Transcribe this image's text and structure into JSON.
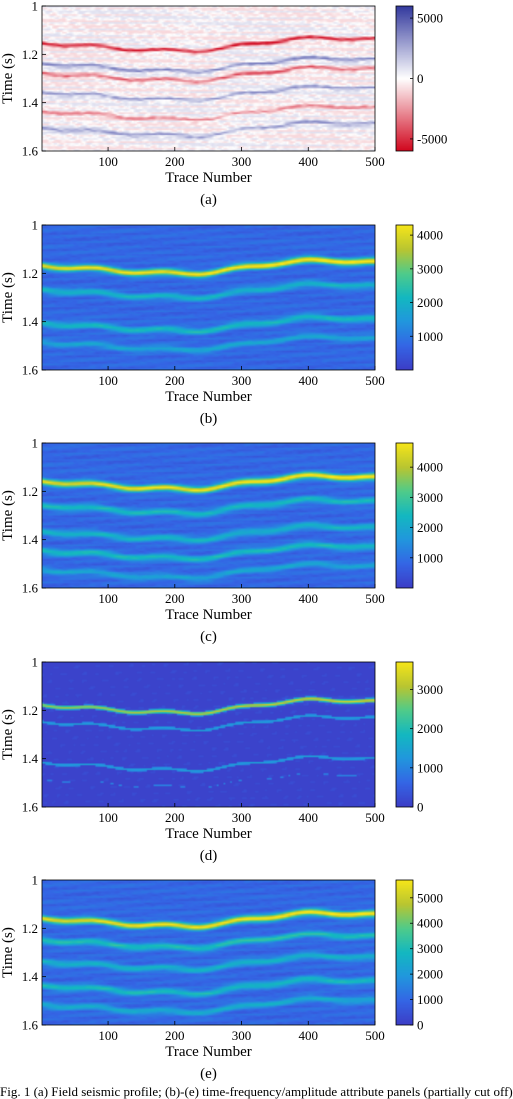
{
  "colors": {
    "seismic_colormap": [
      "#d1081f",
      "#ffffff",
      "#343a9e"
    ],
    "parula_colormap": [
      "#3c3ec7",
      "#3466e5",
      "#2197dd",
      "#13b8c0",
      "#4fcb8a",
      "#b8c531",
      "#f5e51a"
    ]
  },
  "caption_fragment": "Fig. 1 (a) Field seismic profile; (b)-(e) time-frequency/amplitude attribute panels (partially cut off)",
  "chart_data": [
    {
      "type": "heatmap",
      "panel_label": "(a)",
      "xlabel": "Trace Number",
      "ylabel": "Time (s)",
      "xlim": [
        1,
        500
      ],
      "ylim": [
        1.6,
        1.0
      ],
      "xticks": [
        100,
        200,
        300,
        400,
        500
      ],
      "yticks": [
        1,
        1.2,
        1.4,
        1.6
      ],
      "colormap": "seismic",
      "colorbar": {
        "range": [
          -6000,
          6000
        ],
        "ticks": [
          5000,
          0,
          -5000
        ]
      },
      "reflectors": [
        {
          "t0": 1.165,
          "amp": 1.0,
          "sign": -1
        },
        {
          "t0": 1.25,
          "amp": 0.6,
          "sign": 1
        },
        {
          "t0": 1.29,
          "amp": 0.7,
          "sign": -1
        },
        {
          "t0": 1.37,
          "amp": 0.5,
          "sign": 1
        },
        {
          "t0": 1.45,
          "amp": 0.45,
          "sign": -1
        },
        {
          "t0": 1.52,
          "amp": 0.5,
          "sign": 1
        }
      ]
    },
    {
      "type": "heatmap",
      "panel_label": "(b)",
      "xlabel": "Trace Number",
      "ylabel": "Time (s)",
      "xlim": [
        1,
        500
      ],
      "ylim": [
        1.6,
        1.0
      ],
      "xticks": [
        100,
        200,
        300,
        400,
        500
      ],
      "yticks": [
        1,
        1.2,
        1.4,
        1.6
      ],
      "colormap": "parula",
      "colorbar": {
        "range": [
          0,
          4300
        ],
        "ticks": [
          4000,
          3000,
          2000,
          1000
        ]
      },
      "reflectors": [
        {
          "t0": 1.18,
          "amp": 1.0
        },
        {
          "t0": 1.28,
          "amp": 0.4
        },
        {
          "t0": 1.42,
          "amp": 0.45
        },
        {
          "t0": 1.5,
          "amp": 0.3
        }
      ]
    },
    {
      "type": "heatmap",
      "panel_label": "(c)",
      "xlabel": "Trace Number",
      "ylabel": "Time (s)",
      "xlim": [
        1,
        500
      ],
      "ylim": [
        1.6,
        1.0
      ],
      "xticks": [
        100,
        200,
        300,
        400,
        500
      ],
      "yticks": [
        1,
        1.2,
        1.4,
        1.6
      ],
      "colormap": "parula",
      "colorbar": {
        "range": [
          0,
          4800
        ],
        "ticks": [
          4000,
          3000,
          2000,
          1000
        ]
      },
      "reflectors": [
        {
          "t0": 1.17,
          "amp": 1.0
        },
        {
          "t0": 1.27,
          "amp": 0.45
        },
        {
          "t0": 1.38,
          "amp": 0.4
        },
        {
          "t0": 1.46,
          "amp": 0.45
        },
        {
          "t0": 1.54,
          "amp": 0.3
        }
      ]
    },
    {
      "type": "heatmap",
      "panel_label": "(d)",
      "xlabel": "Trace Number",
      "ylabel": "Time (s)",
      "xlim": [
        1,
        500
      ],
      "ylim": [
        1.6,
        1.0
      ],
      "xticks": [
        100,
        200,
        300,
        400,
        500
      ],
      "yticks": [
        1,
        1.2,
        1.4,
        1.6
      ],
      "colormap": "parula",
      "colorbar": {
        "range": [
          0,
          3700
        ],
        "ticks": [
          3000,
          2000,
          1000,
          0
        ]
      },
      "reflectors": [
        {
          "t0": 1.19,
          "amp": 1.0
        },
        {
          "t0": 1.26,
          "amp": 0.45
        },
        {
          "t0": 1.43,
          "amp": 0.45
        },
        {
          "t0": 1.5,
          "amp": 0.3
        }
      ]
    },
    {
      "type": "heatmap",
      "panel_label": "(e)",
      "xlabel": "Trace Number",
      "ylabel": "Time (s)",
      "xlim": [
        1,
        500
      ],
      "ylim": [
        1.6,
        1.0
      ],
      "xticks": [
        100,
        200,
        300,
        400,
        500
      ],
      "yticks": [
        1,
        1.2,
        1.4,
        1.6
      ],
      "colormap": "parula",
      "colorbar": {
        "range": [
          0,
          5700
        ],
        "ticks": [
          5000,
          4000,
          3000,
          2000,
          1000,
          0
        ]
      },
      "reflectors": [
        {
          "t0": 1.17,
          "amp": 1.0
        },
        {
          "t0": 1.26,
          "amp": 0.5
        },
        {
          "t0": 1.35,
          "amp": 0.4
        },
        {
          "t0": 1.45,
          "amp": 0.45
        },
        {
          "t0": 1.53,
          "amp": 0.35
        }
      ]
    }
  ]
}
